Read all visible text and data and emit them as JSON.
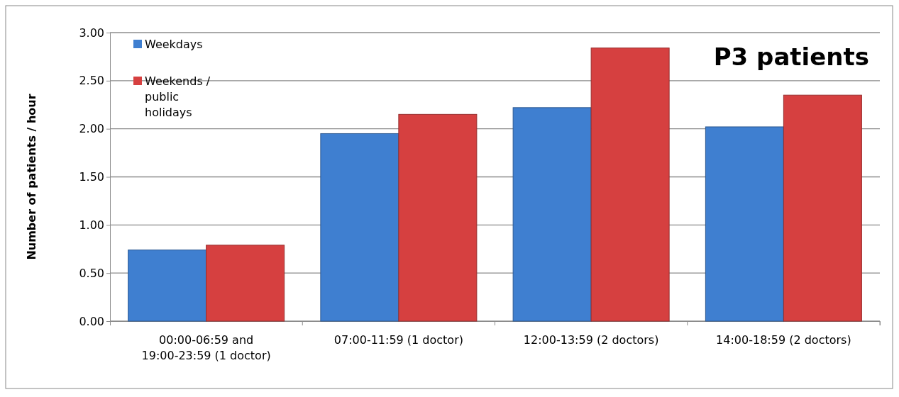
{
  "chart_data": {
    "type": "bar",
    "title": "P3 patients",
    "ylabel": "Number of patients / hour",
    "categories": [
      "00:00-06:59 and 19:00-23:59 (1 doctor)",
      "07:00-11:59 (1 doctor)",
      "12:00-13:59 (2 doctors)",
      "14:00-18:59 (2 doctors)"
    ],
    "series": [
      {
        "name": "Weekdays",
        "color": "#3f7fd0",
        "values": [
          0.74,
          1.95,
          2.22,
          2.02
        ]
      },
      {
        "name": "Weekends / public holidays",
        "color": "#d64040",
        "values": [
          0.79,
          2.15,
          2.84,
          2.35
        ]
      }
    ],
    "ylim": [
      0,
      3
    ],
    "yticks": [
      {
        "value": 0,
        "label": "0.00"
      },
      {
        "value": 0.5,
        "label": "0.50"
      },
      {
        "value": 1,
        "label": "1.00"
      },
      {
        "value": 1.5,
        "label": "1.50"
      },
      {
        "value": 2,
        "label": "2.00"
      },
      {
        "value": 2.5,
        "label": "2.50"
      },
      {
        "value": 3,
        "label": "3.00"
      }
    ],
    "grid": "y",
    "legend": "top left"
  }
}
